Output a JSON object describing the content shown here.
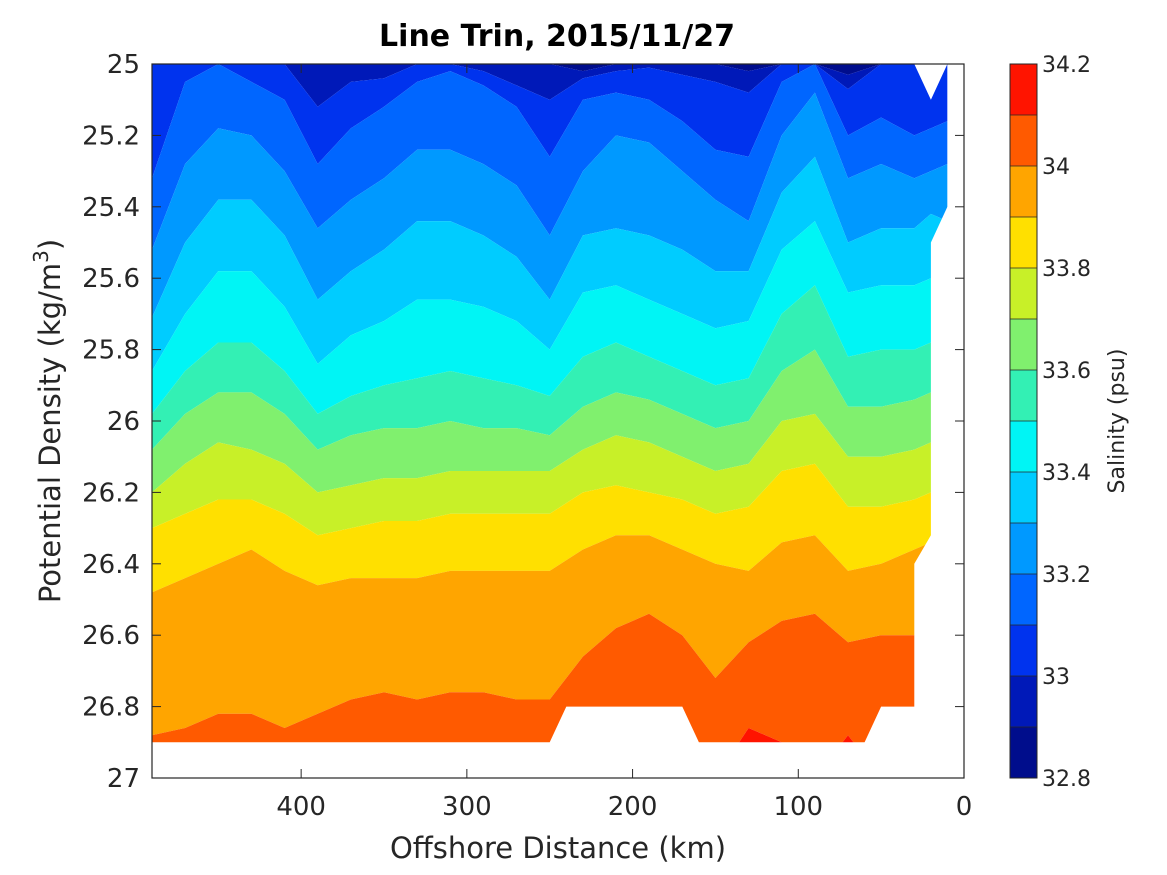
{
  "chart_data": {
    "type": "contourf",
    "title": "Line Trin, 2015/11/27",
    "xlabel": "Offshore Distance (km)",
    "ylabel_main": "Potential Density (kg/m",
    "ylabel_sup": "3",
    "ylabel_close": ")",
    "xlim": [
      490,
      0
    ],
    "ylim": [
      25,
      27
    ],
    "x_reversed": true,
    "y_reversed": true,
    "grid": false,
    "x_ticks": [
      {
        "value": 400,
        "label": "400"
      },
      {
        "value": 300,
        "label": "300"
      },
      {
        "value": 200,
        "label": "200"
      },
      {
        "value": 100,
        "label": "100"
      },
      {
        "value": 0,
        "label": "0"
      }
    ],
    "y_ticks": [
      {
        "value": 25,
        "label": "25"
      },
      {
        "value": 25.2,
        "label": "25.2"
      },
      {
        "value": 25.4,
        "label": "25.4"
      },
      {
        "value": 25.6,
        "label": "25.6"
      },
      {
        "value": 25.8,
        "label": "25.8"
      },
      {
        "value": 26,
        "label": "26"
      },
      {
        "value": 26.2,
        "label": "26.2"
      },
      {
        "value": 26.4,
        "label": "26.4"
      },
      {
        "value": 26.6,
        "label": "26.6"
      },
      {
        "value": 26.8,
        "label": "26.8"
      },
      {
        "value": 27,
        "label": "27"
      }
    ],
    "colorbar": {
      "label": "Salinity (psu)",
      "range": [
        32.8,
        34.2
      ],
      "levels": [
        32.8,
        32.9,
        33.0,
        33.1,
        33.2,
        33.3,
        33.4,
        33.5,
        33.6,
        33.7,
        33.8,
        33.9,
        34.0,
        34.1,
        34.2
      ],
      "colors": [
        "#000d8c",
        "#0019b8",
        "#0033ee",
        "#0066ff",
        "#0099ff",
        "#00ccff",
        "#00f5f5",
        "#33f0b4",
        "#80f06e",
        "#c8f028",
        "#ffe000",
        "#ffa500",
        "#ff5a00",
        "#ff1400",
        "#c00000"
      ],
      "ticks": [
        {
          "value": 33.0,
          "label": "33"
        },
        {
          "value": 33.2,
          "label": "33.2"
        },
        {
          "value": 33.4,
          "label": "33.4"
        },
        {
          "value": 33.6,
          "label": "33.6"
        },
        {
          "value": 33.8,
          "label": "33.8"
        },
        {
          "value": 34.0,
          "label": "34"
        },
        {
          "value": 34.2,
          "label": "34.2"
        }
      ]
    },
    "contours": {
      "x": [
        490,
        470,
        450,
        430,
        410,
        390,
        370,
        350,
        330,
        310,
        290,
        270,
        250,
        230,
        210,
        190,
        170,
        150,
        130,
        110,
        90,
        70,
        50,
        30,
        20,
        10
      ],
      "boundaries": [
        {
          "level": 32.9,
          "y": [
            25.0,
            25.0,
            25.0,
            25.0,
            25.0,
            25.0,
            25.0,
            25.0,
            25.0,
            25.0,
            25.0,
            25.0,
            25.0,
            25.02,
            25.0,
            25.0,
            25.0,
            25.0,
            25.02,
            25.0,
            25.0,
            25.03,
            25.0,
            25.0,
            25.0,
            25.0
          ]
        },
        {
          "level": 33.0,
          "y": [
            25.0,
            25.0,
            25.0,
            25.0,
            25.0,
            25.12,
            25.05,
            25.04,
            25.0,
            25.0,
            25.02,
            25.06,
            25.1,
            25.04,
            25.02,
            25.01,
            25.03,
            25.05,
            25.08,
            25.0,
            25.0,
            25.07,
            25.0,
            25.0,
            25.0,
            25.0
          ]
        },
        {
          "level": 33.1,
          "y": [
            25.32,
            25.05,
            25.0,
            25.05,
            25.1,
            25.28,
            25.18,
            25.12,
            25.05,
            25.02,
            25.06,
            25.12,
            25.26,
            25.1,
            25.08,
            25.1,
            25.16,
            25.24,
            25.26,
            25.05,
            25.0,
            25.2,
            25.15,
            25.2,
            25.18,
            25.16
          ]
        },
        {
          "level": 33.2,
          "y": [
            25.52,
            25.28,
            25.18,
            25.2,
            25.3,
            25.46,
            25.38,
            25.32,
            25.24,
            25.24,
            25.28,
            25.34,
            25.48,
            25.3,
            25.2,
            25.22,
            25.3,
            25.38,
            25.44,
            25.2,
            25.08,
            25.32,
            25.28,
            25.32,
            25.3,
            25.28
          ]
        },
        {
          "level": 33.3,
          "y": [
            25.71,
            25.5,
            25.38,
            25.38,
            25.48,
            25.66,
            25.58,
            25.52,
            25.44,
            25.44,
            25.48,
            25.54,
            25.66,
            25.48,
            25.46,
            25.48,
            25.52,
            25.58,
            25.58,
            25.36,
            25.26,
            25.5,
            25.46,
            25.46,
            25.42,
            25.44
          ]
        },
        {
          "level": 33.4,
          "y": [
            25.86,
            25.7,
            25.58,
            25.58,
            25.68,
            25.84,
            25.76,
            25.72,
            25.66,
            25.66,
            25.68,
            25.72,
            25.8,
            25.64,
            25.62,
            25.66,
            25.7,
            25.74,
            25.72,
            25.52,
            25.44,
            25.64,
            25.62,
            25.62,
            25.6,
            25.6
          ]
        },
        {
          "level": 33.5,
          "y": [
            25.98,
            25.86,
            25.78,
            25.78,
            25.86,
            25.98,
            25.93,
            25.9,
            25.88,
            25.86,
            25.88,
            25.9,
            25.93,
            25.82,
            25.78,
            25.82,
            25.86,
            25.9,
            25.88,
            25.7,
            25.62,
            25.82,
            25.8,
            25.8,
            25.78,
            25.76
          ]
        },
        {
          "level": 33.6,
          "y": [
            26.08,
            25.98,
            25.92,
            25.92,
            25.98,
            26.08,
            26.04,
            26.02,
            26.02,
            26.0,
            26.02,
            26.02,
            26.04,
            25.96,
            25.92,
            25.94,
            25.98,
            26.02,
            26.0,
            25.86,
            25.8,
            25.96,
            25.96,
            25.94,
            25.92,
            25.92
          ]
        },
        {
          "level": 33.7,
          "y": [
            26.2,
            26.12,
            26.06,
            26.08,
            26.12,
            26.2,
            26.18,
            26.16,
            26.16,
            26.14,
            26.14,
            26.14,
            26.14,
            26.08,
            26.04,
            26.06,
            26.1,
            26.14,
            26.12,
            26.0,
            25.98,
            26.1,
            26.1,
            26.08,
            26.06,
            26.06
          ]
        },
        {
          "level": 33.8,
          "y": [
            26.3,
            26.26,
            26.22,
            26.22,
            26.26,
            26.32,
            26.3,
            26.28,
            26.28,
            26.26,
            26.26,
            26.26,
            26.26,
            26.2,
            26.18,
            26.2,
            26.22,
            26.26,
            26.24,
            26.14,
            26.12,
            26.24,
            26.24,
            26.22,
            26.2,
            26.2
          ]
        },
        {
          "level": 33.9,
          "y": [
            26.48,
            26.44,
            26.4,
            26.36,
            26.42,
            26.46,
            26.44,
            26.44,
            26.44,
            26.42,
            26.42,
            26.42,
            26.42,
            26.36,
            26.32,
            26.32,
            26.36,
            26.4,
            26.42,
            26.34,
            26.32,
            26.42,
            26.4,
            26.36,
            26.34,
            26.34
          ]
        },
        {
          "level": 34.0,
          "y": [
            26.88,
            26.86,
            26.82,
            26.82,
            26.86,
            26.82,
            26.78,
            26.76,
            26.78,
            26.76,
            26.76,
            26.78,
            26.78,
            26.66,
            26.58,
            26.54,
            26.6,
            26.72,
            26.62,
            26.56,
            26.54,
            26.62,
            26.6,
            26.6,
            26.58,
            26.56
          ]
        },
        {
          "level": 34.1,
          "y": [
            27.0,
            27.0,
            27.0,
            27.0,
            27.0,
            27.0,
            27.0,
            27.0,
            27.0,
            27.0,
            27.0,
            27.0,
            27.0,
            27.0,
            27.0,
            27.0,
            27.0,
            27.0,
            26.86,
            26.9,
            27.0,
            26.88,
            27.0,
            27.0,
            27.0,
            27.0
          ]
        }
      ],
      "data_region": [
        [
          490,
          25.0
        ],
        [
          20,
          25.0
        ],
        [
          10,
          25.0
        ],
        [
          10,
          25.4
        ],
        [
          20,
          25.5
        ],
        [
          20,
          26.32
        ],
        [
          30,
          26.4
        ],
        [
          30,
          26.8
        ],
        [
          50,
          26.8
        ],
        [
          60,
          26.9
        ],
        [
          160,
          26.9
        ],
        [
          170,
          26.8
        ],
        [
          240,
          26.8
        ],
        [
          250,
          26.9
        ],
        [
          490,
          26.9
        ]
      ],
      "blank_notch_top": [
        [
          30,
          25.0
        ],
        [
          20,
          25.1
        ],
        [
          10,
          25.0
        ]
      ]
    }
  }
}
